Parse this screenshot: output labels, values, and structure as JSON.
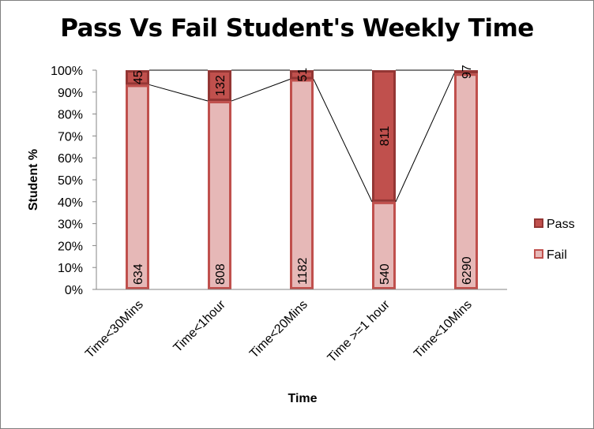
{
  "chart_data": {
    "type": "bar",
    "stacked": "percent",
    "title": "Pass Vs Fail Student's Weekly Time",
    "xlabel": "Time",
    "ylabel": "Student %",
    "ylim": [
      0,
      100
    ],
    "y_ticks": [
      "0%",
      "10%",
      "20%",
      "30%",
      "40%",
      "50%",
      "60%",
      "70%",
      "80%",
      "90%",
      "100%"
    ],
    "categories": [
      "Time<30Mins",
      "Time<1hour",
      "Time<20Mins",
      "Time >=1 hour",
      "Time<10Mins"
    ],
    "series": [
      {
        "name": "Fail",
        "values": [
          634,
          808,
          1182,
          540,
          6290
        ],
        "color": "#e6b8b7",
        "border": "#c0504d"
      },
      {
        "name": "Pass",
        "values": [
          45,
          132,
          51,
          811,
          97
        ],
        "color": "#c0504d",
        "border": "#943634"
      }
    ],
    "series_lines": true,
    "grid": false,
    "legend_position": "right"
  }
}
